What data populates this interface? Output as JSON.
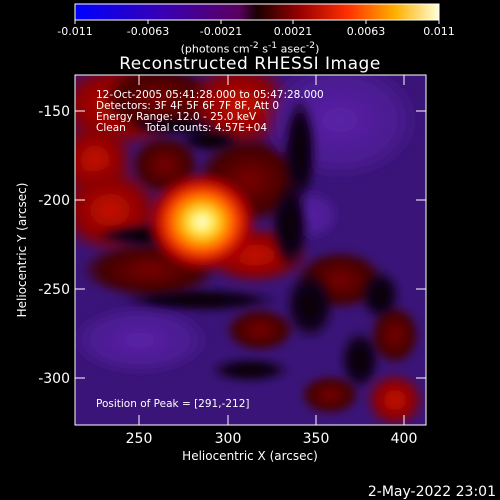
{
  "title": "Reconstructed RHESSI Image",
  "colorbar": {
    "ticks": [
      "-0.011",
      "-0.0063",
      "-0.0021",
      "0.0021",
      "0.0063",
      "0.011"
    ],
    "units_html": "(photons cm<sup>-2</sup> s<sup>-1</sup> asec<sup>-2</sup>)",
    "units_text": "(photons cm-2 s-1 asec-2)"
  },
  "info": {
    "time": "12-Oct-2005 05:41:28.000 to 05:47:28.000",
    "detectors": "Detectors: 3F 4F 5F 6F 7F 8F, Att 0",
    "energy": "Energy Range: 12.0 - 25.0 keV",
    "clean": "Clean",
    "counts": "Total counts: 4.57E+04",
    "peak": "Position of Peak = [291,-212]"
  },
  "axes": {
    "xlabel": "Heliocentric X (arcsec)",
    "ylabel": "Heliocentric Y (arcsec)",
    "xticks": [
      "250",
      "300",
      "350",
      "400"
    ],
    "yticks": [
      "-150",
      "-200",
      "-250",
      "-300"
    ]
  },
  "footer_date": "2-May-2022 23:01",
  "colors": {
    "background": "#000000",
    "axis": "#ffffff"
  }
}
